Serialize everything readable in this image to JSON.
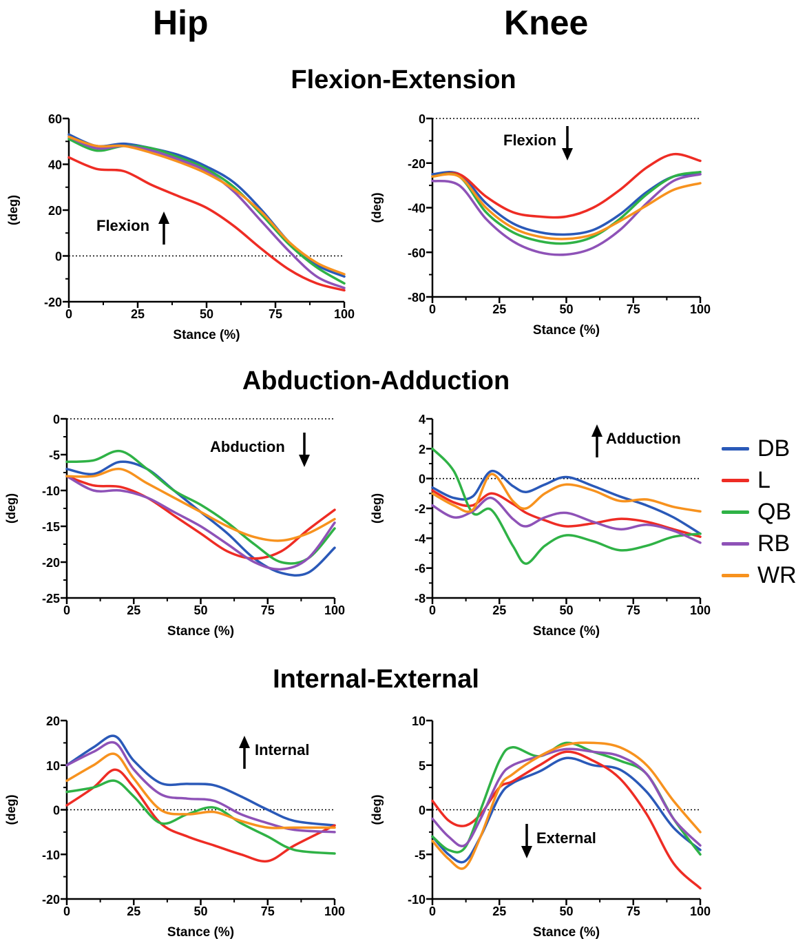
{
  "headers": {
    "hip": "Hip",
    "knee": "Knee"
  },
  "sections": {
    "flexion": "Flexion-Extension",
    "abduction": "Abduction-Adduction",
    "rotation": "Internal-External"
  },
  "colors": {
    "DB": "#2a59b8",
    "L": "#ee2c24",
    "QB": "#2fb246",
    "RB": "#8e52b7",
    "WR": "#f7921e"
  },
  "legend": [
    {
      "key": "DB",
      "label": "DB"
    },
    {
      "key": "L",
      "label": "L"
    },
    {
      "key": "QB",
      "label": "QB"
    },
    {
      "key": "RB",
      "label": "RB"
    },
    {
      "key": "WR",
      "label": "WR"
    }
  ],
  "chart_data": [
    {
      "id": "hip-flex",
      "type": "line",
      "xlabel": "Stance (%)",
      "ylabel": "(deg)",
      "xlim": [
        0,
        100
      ],
      "ylim": [
        -20,
        60
      ],
      "yticks": [
        -20,
        0,
        20,
        40,
        60
      ],
      "xticks": [
        0,
        25,
        50,
        75,
        100
      ],
      "annotation": {
        "text": "Flexion",
        "arrow": "up"
      },
      "x": [
        0,
        10,
        20,
        30,
        40,
        50,
        60,
        70,
        80,
        90,
        100
      ],
      "series": [
        {
          "name": "DB",
          "values": [
            53,
            48,
            49,
            47,
            44,
            39,
            32,
            20,
            6,
            -4,
            -9
          ]
        },
        {
          "name": "L",
          "values": [
            43,
            38,
            37,
            31,
            26,
            21,
            13,
            3,
            -6,
            -12,
            -15
          ]
        },
        {
          "name": "QB",
          "values": [
            51,
            46,
            48,
            47,
            43,
            38,
            30,
            18,
            5,
            -5,
            -12
          ]
        },
        {
          "name": "RB",
          "values": [
            52,
            47,
            48,
            46,
            42,
            37,
            28,
            15,
            2,
            -9,
            -14
          ]
        },
        {
          "name": "WR",
          "values": [
            52,
            48,
            48,
            45,
            41,
            36,
            29,
            19,
            6,
            -3,
            -8
          ]
        }
      ]
    },
    {
      "id": "knee-flex",
      "type": "line",
      "xlabel": "Stance (%)",
      "ylabel": "(deg)",
      "xlim": [
        0,
        100
      ],
      "ylim": [
        -80,
        0
      ],
      "yticks": [
        -80,
        -60,
        -40,
        -20,
        0
      ],
      "xticks": [
        0,
        25,
        50,
        75,
        100
      ],
      "annotation": {
        "text": "Flexion",
        "arrow": "down"
      },
      "x": [
        0,
        10,
        20,
        30,
        40,
        50,
        60,
        70,
        80,
        90,
        100
      ],
      "series": [
        {
          "name": "DB",
          "values": [
            -25,
            -25,
            -38,
            -47,
            -51,
            -52,
            -50,
            -43,
            -33,
            -26,
            -25
          ]
        },
        {
          "name": "L",
          "values": [
            -26,
            -25,
            -35,
            -42,
            -44,
            -44,
            -40,
            -32,
            -22,
            -16,
            -19
          ]
        },
        {
          "name": "QB",
          "values": [
            -26,
            -26,
            -42,
            -51,
            -55,
            -56,
            -53,
            -45,
            -34,
            -26,
            -24
          ]
        },
        {
          "name": "RB",
          "values": [
            -28,
            -30,
            -45,
            -55,
            -60,
            -61,
            -58,
            -50,
            -38,
            -28,
            -25
          ]
        },
        {
          "name": "WR",
          "values": [
            -26,
            -26,
            -40,
            -49,
            -53,
            -54,
            -52,
            -46,
            -39,
            -32,
            -29
          ]
        }
      ]
    },
    {
      "id": "hip-abd",
      "type": "line",
      "xlabel": "Stance (%)",
      "ylabel": "(deg)",
      "xlim": [
        0,
        100
      ],
      "ylim": [
        -25,
        0
      ],
      "yticks": [
        -25,
        -20,
        -15,
        -10,
        -5,
        0
      ],
      "xticks": [
        0,
        25,
        50,
        75,
        100
      ],
      "annotation": {
        "text": "Abduction",
        "arrow": "down"
      },
      "x": [
        0,
        10,
        20,
        30,
        40,
        50,
        60,
        70,
        80,
        90,
        100
      ],
      "series": [
        {
          "name": "DB",
          "values": [
            -7,
            -7.7,
            -6,
            -7,
            -10,
            -13,
            -16,
            -19.5,
            -21.5,
            -21.5,
            -18
          ]
        },
        {
          "name": "L",
          "values": [
            -8,
            -9.3,
            -9.5,
            -11,
            -13.5,
            -16,
            -18.5,
            -19.5,
            -18.5,
            -15.5,
            -12.7
          ]
        },
        {
          "name": "QB",
          "values": [
            -6,
            -5.8,
            -4.5,
            -7,
            -10,
            -12,
            -14.5,
            -17.5,
            -20,
            -19.5,
            -15.3
          ]
        },
        {
          "name": "RB",
          "values": [
            -8,
            -10,
            -10,
            -11,
            -13,
            -15,
            -17.5,
            -20,
            -21,
            -19.5,
            -14.5
          ]
        },
        {
          "name": "WR",
          "values": [
            -8,
            -8,
            -7,
            -9,
            -11,
            -13,
            -15,
            -16.5,
            -17,
            -16,
            -14
          ]
        }
      ]
    },
    {
      "id": "knee-add",
      "type": "line",
      "xlabel": "Stance (%)",
      "ylabel": "(deg)",
      "xlim": [
        0,
        100
      ],
      "ylim": [
        -8,
        4
      ],
      "yticks": [
        -8,
        -6,
        -4,
        -2,
        0,
        2,
        4
      ],
      "xticks": [
        0,
        25,
        50,
        75,
        100
      ],
      "annotation": {
        "text": "Adduction",
        "arrow": "up"
      },
      "x": [
        0,
        8,
        15,
        22,
        30,
        35,
        42,
        50,
        60,
        70,
        80,
        90,
        100
      ],
      "series": [
        {
          "name": "DB",
          "values": [
            -0.6,
            -1.3,
            -1.2,
            0.5,
            -0.5,
            -0.9,
            -0.4,
            0.1,
            -0.5,
            -1.2,
            -1.8,
            -2.6,
            -3.7
          ]
        },
        {
          "name": "L",
          "values": [
            -0.8,
            -1.6,
            -1.8,
            -1.0,
            -1.7,
            -2.3,
            -2.8,
            -3.2,
            -3.0,
            -2.7,
            -2.9,
            -3.4,
            -3.9
          ]
        },
        {
          "name": "QB",
          "values": [
            2.0,
            0.5,
            -2.3,
            -2.1,
            -4.5,
            -5.7,
            -4.5,
            -3.8,
            -4.2,
            -4.8,
            -4.5,
            -3.9,
            -3.7
          ]
        },
        {
          "name": "RB",
          "values": [
            -1.8,
            -2.6,
            -2.2,
            -1.3,
            -2.7,
            -3.2,
            -2.6,
            -2.3,
            -2.9,
            -3.4,
            -3.1,
            -3.5,
            -4.3
          ]
        },
        {
          "name": "WR",
          "values": [
            -1.0,
            -1.8,
            -2.1,
            0.3,
            -1.5,
            -2.0,
            -1.0,
            -0.4,
            -0.8,
            -1.5,
            -1.4,
            -1.9,
            -2.2
          ]
        }
      ]
    },
    {
      "id": "hip-rot",
      "type": "line",
      "xlabel": "Stance (%)",
      "ylabel": "(deg)",
      "xlim": [
        0,
        100
      ],
      "ylim": [
        -20,
        20
      ],
      "yticks": [
        -20,
        -10,
        0,
        10,
        20
      ],
      "xticks": [
        0,
        25,
        50,
        75,
        100
      ],
      "annotation": {
        "text": "Internal",
        "arrow": "up"
      },
      "x": [
        0,
        10,
        18,
        25,
        35,
        45,
        55,
        65,
        75,
        85,
        100
      ],
      "series": [
        {
          "name": "DB",
          "values": [
            10,
            14,
            16.5,
            11,
            6,
            5.8,
            5.5,
            3,
            0,
            -2.5,
            -3.5
          ]
        },
        {
          "name": "L",
          "values": [
            1,
            5,
            9,
            5,
            -3,
            -6,
            -8,
            -10,
            -11.5,
            -8,
            -3.5
          ]
        },
        {
          "name": "QB",
          "values": [
            4,
            5,
            6.5,
            3,
            -3,
            -1,
            0.5,
            -3,
            -6,
            -9,
            -9.8
          ]
        },
        {
          "name": "RB",
          "values": [
            10,
            13,
            15,
            9,
            3.5,
            2.5,
            2,
            -1,
            -3,
            -4.5,
            -5
          ]
        },
        {
          "name": "WR",
          "values": [
            6.5,
            10,
            12.5,
            7,
            0,
            -1,
            -0.5,
            -2.5,
            -4,
            -4,
            -4
          ]
        }
      ]
    },
    {
      "id": "knee-rot",
      "type": "line",
      "xlabel": "Stance (%)",
      "ylabel": "(deg)",
      "xlim": [
        0,
        100
      ],
      "ylim": [
        -10,
        10
      ],
      "yticks": [
        -10,
        -5,
        0,
        5,
        10
      ],
      "xticks": [
        0,
        25,
        50,
        75,
        100
      ],
      "annotation": {
        "text": "External",
        "arrow": "down"
      },
      "x": [
        0,
        6,
        12,
        18,
        25,
        30,
        40,
        50,
        60,
        70,
        80,
        90,
        100
      ],
      "series": [
        {
          "name": "DB",
          "values": [
            -3,
            -5,
            -5.8,
            -3,
            1.5,
            3,
            4.3,
            5.8,
            5,
            4.5,
            2,
            -2,
            -4.5
          ]
        },
        {
          "name": "L",
          "values": [
            1,
            -1.2,
            -1.8,
            -0.5,
            2.5,
            3.2,
            5,
            6.5,
            5.5,
            3.5,
            -0.5,
            -6,
            -8.8
          ]
        },
        {
          "name": "QB",
          "values": [
            -3,
            -4.5,
            -4.3,
            0,
            5.5,
            7,
            6,
            7.5,
            6.5,
            5.5,
            4,
            -1,
            -5
          ]
        },
        {
          "name": "RB",
          "values": [
            -1,
            -3,
            -4,
            -1,
            3.5,
            5,
            6,
            6.8,
            6.5,
            6,
            4,
            -1,
            -4
          ]
        },
        {
          "name": "WR",
          "values": [
            -3.5,
            -5.5,
            -6.5,
            -3,
            2.5,
            4,
            6,
            7.3,
            7.5,
            7,
            5,
            1,
            -2.5
          ]
        }
      ]
    }
  ]
}
